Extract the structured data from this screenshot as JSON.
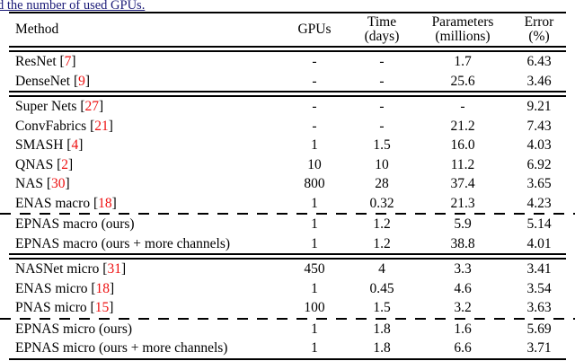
{
  "caption": {
    "text": "d the number of used GPUs."
  },
  "colors": {
    "caption_text": "#1b1b78",
    "citation": "#ee1111",
    "rule": "#000000",
    "background": "#ffffff"
  },
  "table": {
    "headers": {
      "method": "Method",
      "gpus": "GPUs",
      "time_line1": "Time",
      "time_line2": "(days)",
      "params_line1": "Parameters",
      "params_line2": "(millions)",
      "error_line1": "Error",
      "error_line2": "(%)"
    },
    "rows": [
      {
        "label_pre": "ResNet [",
        "cite": "7",
        "label_post": "]",
        "gpus": "-",
        "time": "-",
        "params": "1.7",
        "error": "6.43"
      },
      {
        "label_pre": "DenseNet [",
        "cite": "9",
        "label_post": "]",
        "gpus": "-",
        "time": "-",
        "params": "25.6",
        "error": "3.46"
      },
      {
        "label_pre": "Super Nets [",
        "cite": "27",
        "label_post": "]",
        "gpus": "-",
        "time": "-",
        "params": "-",
        "error": "9.21"
      },
      {
        "label_pre": "ConvFabrics [",
        "cite": "21",
        "label_post": "]",
        "gpus": "-",
        "time": "-",
        "params": "21.2",
        "error": "7.43"
      },
      {
        "label_pre": "SMASH [",
        "cite": "4",
        "label_post": "]",
        "gpus": "1",
        "time": "1.5",
        "params": "16.0",
        "error": "4.03"
      },
      {
        "label_pre": "QNAS [",
        "cite": "2",
        "label_post": "]",
        "gpus": "10",
        "time": "10",
        "params": "11.2",
        "error": "6.92"
      },
      {
        "label_pre": "NAS [",
        "cite": "30",
        "label_post": "]",
        "gpus": "800",
        "time": "28",
        "params": "37.4",
        "error": "3.65"
      },
      {
        "label_pre": "ENAS macro [",
        "cite": "18",
        "label_post": "]",
        "gpus": "1",
        "time": "0.32",
        "params": "21.3",
        "error": "4.23"
      },
      {
        "label_pre": "EPNAS macro (ours)",
        "cite": "",
        "label_post": "",
        "gpus": "1",
        "time": "1.2",
        "params": "5.9",
        "error": "5.14"
      },
      {
        "label_pre": "EPNAS macro (ours + more channels)",
        "cite": "",
        "label_post": "",
        "gpus": "1",
        "time": "1.2",
        "params": "38.8",
        "error": "4.01"
      },
      {
        "label_pre": "NASNet micro [",
        "cite": "31",
        "label_post": "]",
        "gpus": "450",
        "time": "4",
        "params": "3.3",
        "error": "3.41"
      },
      {
        "label_pre": "ENAS micro [",
        "cite": "18",
        "label_post": "]",
        "gpus": "1",
        "time": "0.45",
        "params": "4.6",
        "error": "3.54"
      },
      {
        "label_pre": "PNAS micro [",
        "cite": "15",
        "label_post": "]",
        "gpus": "100",
        "time": "1.5",
        "params": "3.2",
        "error": "3.63"
      },
      {
        "label_pre": "EPNAS micro (ours)",
        "cite": "",
        "label_post": "",
        "gpus": "1",
        "time": "1.8",
        "params": "1.6",
        "error": "5.69"
      },
      {
        "label_pre": "EPNAS micro (ours + more channels)",
        "cite": "",
        "label_post": "",
        "gpus": "1",
        "time": "1.8",
        "params": "6.6",
        "error": "3.71"
      }
    ]
  }
}
